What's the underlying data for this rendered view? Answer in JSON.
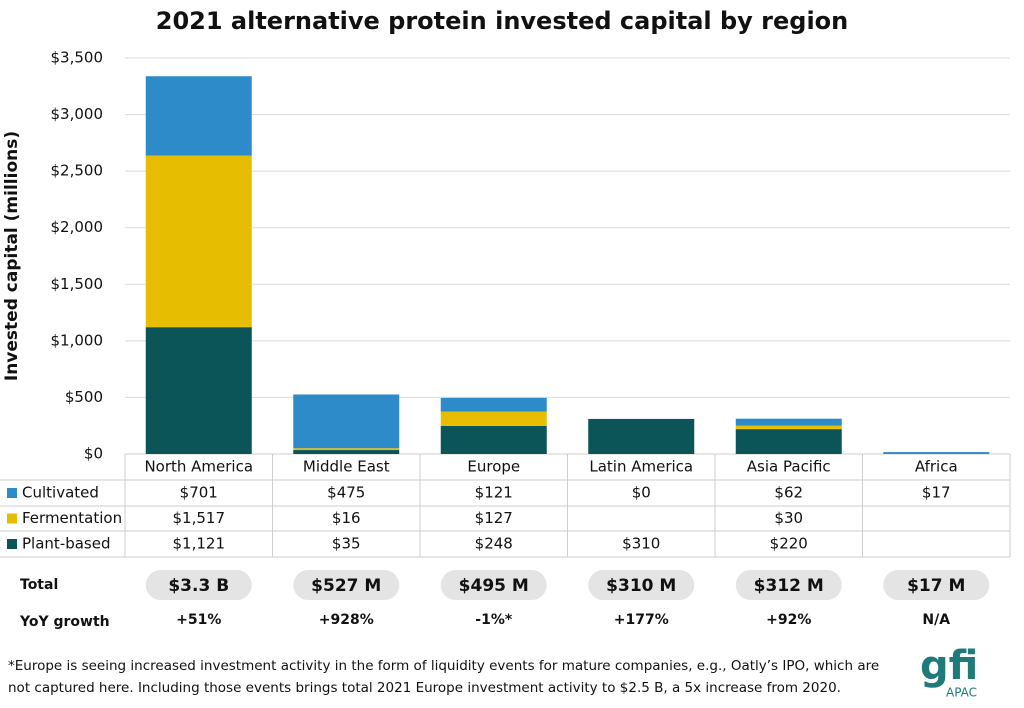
{
  "chart_data": {
    "type": "stacked_bar",
    "title": "2021 alternative protein invested capital by region",
    "y_label": "Invested capital (millions)",
    "categories": [
      "North America",
      "Middle East",
      "Europe",
      "Latin America",
      "Asia Pacific",
      "Africa"
    ],
    "series": [
      {
        "name": "Cultivated",
        "color": "#2e8bc9",
        "values": [
          701,
          475,
          121,
          0,
          62,
          17
        ],
        "value_labels": [
          "$701",
          "$475",
          "$121",
          "$0",
          "$62",
          "$17"
        ]
      },
      {
        "name": "Fermentation",
        "color": "#e6bd00",
        "values": [
          1517,
          16,
          127,
          null,
          30,
          null
        ],
        "value_labels": [
          "$1,517",
          "$16",
          "$127",
          null,
          "$30",
          null
        ]
      },
      {
        "name": "Plant-based",
        "color": "#0b5558",
        "values": [
          1121,
          35,
          248,
          310,
          220,
          null
        ],
        "value_labels": [
          "$1,121",
          "$35",
          "$248",
          "$310",
          "$220",
          null
        ]
      }
    ],
    "ylim": [
      0,
      3500
    ],
    "yticks": [
      {
        "value": 0,
        "label": "$0"
      },
      {
        "value": 500,
        "label": "$500"
      },
      {
        "value": 1000,
        "label": "$1,000"
      },
      {
        "value": 1500,
        "label": "$1,500"
      },
      {
        "value": 2000,
        "label": "$2,000"
      },
      {
        "value": 2500,
        "label": "$2,500"
      },
      {
        "value": 3000,
        "label": "$3,000"
      },
      {
        "value": 3500,
        "label": "$3,500"
      }
    ],
    "grid": true,
    "total_row": {
      "label": "Total",
      "values": [
        "$3.3 B",
        "$527 M",
        "$495 M",
        "$310 M",
        "$312 M",
        "$17 M"
      ]
    },
    "growth_row": {
      "label": "YoY growth",
      "values": [
        "+51%",
        "+928%",
        "-1%*",
        "+177%",
        "+92%",
        "N/A"
      ]
    },
    "footnote": [
      "*Europe is seeing increased investment activity in the form of liquidity events for mature companies, e.g., Oatly’s IPO, which are",
      "not captured here. Including those events brings total 2021 Europe investment activity to $2.5 B, a 5x increase from 2020."
    ],
    "logo": {
      "text": "gfi",
      "subtext": "APAC"
    }
  }
}
